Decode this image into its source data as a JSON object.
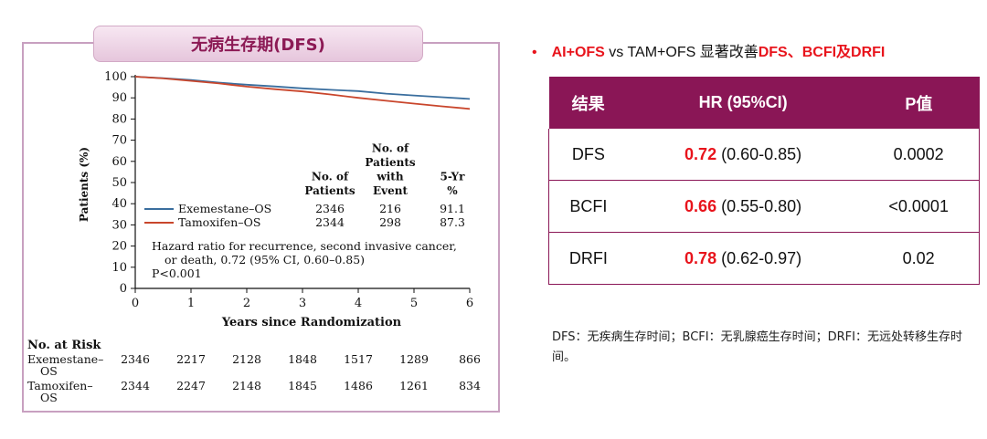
{
  "left": {
    "banner_title": "无病生存期(DFS)"
  },
  "chart_data": {
    "type": "line",
    "ylabel": "Patients (%)",
    "xlabel": "Years since Randomization",
    "xlim": [
      0,
      6
    ],
    "ylim": [
      0,
      100
    ],
    "x_ticks": [
      0,
      1,
      2,
      3,
      4,
      5,
      6
    ],
    "y_ticks": [
      0,
      10,
      20,
      30,
      40,
      50,
      60,
      70,
      80,
      90,
      100
    ],
    "series": [
      {
        "name": "Exemestane–OS",
        "color": "#3a6e9e",
        "points": [
          [
            0,
            100
          ],
          [
            0.5,
            99.3
          ],
          [
            1,
            98.4
          ],
          [
            1.5,
            97.2
          ],
          [
            2,
            96.2
          ],
          [
            2.5,
            95.4
          ],
          [
            3,
            94.5
          ],
          [
            3.5,
            93.8
          ],
          [
            4,
            93.2
          ],
          [
            4.5,
            92.0
          ],
          [
            5,
            91.1
          ],
          [
            5.5,
            90.3
          ],
          [
            6,
            89.5
          ]
        ]
      },
      {
        "name": "Tamoxifen–OS",
        "color": "#c9462c",
        "points": [
          [
            0,
            100
          ],
          [
            0.5,
            99.2
          ],
          [
            1,
            98.0
          ],
          [
            1.5,
            96.8
          ],
          [
            2,
            95.3
          ],
          [
            2.5,
            94.1
          ],
          [
            3,
            93.0
          ],
          [
            3.5,
            91.6
          ],
          [
            4,
            90.0
          ],
          [
            4.5,
            88.6
          ],
          [
            5,
            87.3
          ],
          [
            5.5,
            86.0
          ],
          [
            6,
            84.8
          ]
        ]
      }
    ],
    "summary_table": {
      "headers": [
        [
          "No. of",
          "Patients"
        ],
        [
          "No. of",
          "Patients",
          "with",
          "Event"
        ],
        [
          "5-Yr",
          "%"
        ]
      ],
      "rows": [
        [
          "Exemestane–OS",
          "2346",
          "216",
          "91.1"
        ],
        [
          "Tamoxifen–OS",
          "2344",
          "298",
          "87.3"
        ]
      ]
    },
    "annotation": [
      "Hazard ratio for recurrence, second invasive cancer,",
      "or death, 0.72 (95% CI, 0.60–0.85)",
      "P<0.001"
    ],
    "at_risk": {
      "title": "No. at Risk",
      "rows": [
        {
          "label": [
            "Exemestane–",
            "OS"
          ],
          "values": [
            "2346",
            "2217",
            "2128",
            "1848",
            "1517",
            "1289",
            "866"
          ]
        },
        {
          "label": [
            "Tamoxifen–",
            "OS"
          ],
          "values": [
            "2344",
            "2247",
            "2148",
            "1845",
            "1486",
            "1261",
            "834"
          ]
        }
      ]
    }
  },
  "right": {
    "bullet": {
      "dot": "•",
      "part1": "AI+OFS",
      "part2": " vs TAM+OFS 显著改善",
      "part3": "DFS、BCFI及DRFI"
    },
    "table": {
      "headers": [
        "结果",
        "HR (95%CI)",
        "P值"
      ],
      "rows": [
        {
          "outcome": "DFS",
          "hr_point": "0.72",
          "hr_ci": " (0.60-0.85)",
          "p": "0.0002"
        },
        {
          "outcome": "BCFI",
          "hr_point": "0.66",
          "hr_ci": " (0.55-0.80)",
          "p": "<0.0001"
        },
        {
          "outcome": "DRFI",
          "hr_point": "0.78",
          "hr_ci": " (0.62-0.97)",
          "p": "0.02"
        }
      ]
    },
    "footnote": "DFS：无疾病生存时间；BCFI：无乳腺癌生存时间；DRFI：无远处转移生存时间。"
  }
}
